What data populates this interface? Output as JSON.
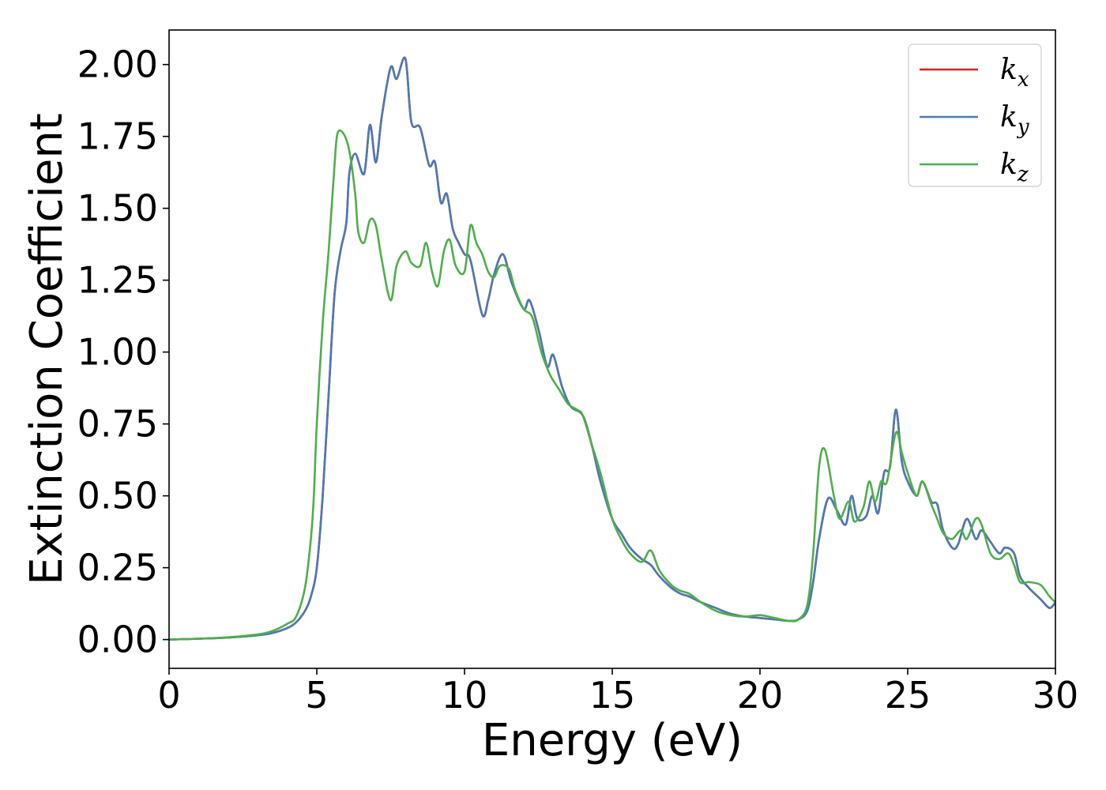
{
  "chart_data": {
    "type": "line",
    "xlabel": "Energy (eV)",
    "ylabel": "Extinction Coefficient",
    "xlim": [
      0,
      30
    ],
    "ylim": [
      -0.1,
      2.12
    ],
    "xticks": [
      0,
      5,
      10,
      15,
      20,
      25,
      30
    ],
    "xtick_labels": [
      "0",
      "5",
      "10",
      "15",
      "20",
      "25",
      "30"
    ],
    "yticks": [
      0,
      0.25,
      0.5,
      0.75,
      1.0,
      1.25,
      1.5,
      1.75,
      2.0
    ],
    "ytick_labels": [
      "0.00",
      "0.25",
      "0.50",
      "0.75",
      "1.00",
      "1.25",
      "1.50",
      "1.75",
      "2.00"
    ],
    "grid": false,
    "legend_position": "top-right",
    "legend": [
      {
        "symbol": "k",
        "subscript": "x",
        "color": "#e41a1c"
      },
      {
        "symbol": "k",
        "subscript": "y",
        "color": "#4a7ab5"
      },
      {
        "symbol": "k",
        "subscript": "z",
        "color": "#4daf4a"
      }
    ],
    "series": [
      {
        "color": "#e41a1c",
        "x": [
          0,
          1,
          2,
          3,
          3.5,
          4,
          4.3,
          4.6,
          4.8,
          5,
          5.2,
          5.4,
          5.6,
          5.8,
          6,
          6.1,
          6.3,
          6.6,
          6.8,
          7,
          7.2,
          7.5,
          7.7,
          8,
          8.2,
          8.5,
          8.8,
          9,
          9.2,
          9.4,
          9.6,
          9.8,
          10,
          10.2,
          10.6,
          10.8,
          11,
          11.3,
          11.6,
          12,
          12.2,
          12.5,
          12.8,
          13,
          13.3,
          13.6,
          14,
          14.3,
          14.6,
          15,
          15.3,
          15.6,
          16,
          16.3,
          16.6,
          17,
          17.3,
          17.6,
          18,
          18.5,
          19,
          19.5,
          20,
          20.5,
          21,
          21.3,
          21.6,
          21.8,
          22,
          22.3,
          22.6,
          22.9,
          23.1,
          23.3,
          23.6,
          23.8,
          24,
          24.2,
          24.4,
          24.6,
          24.8,
          25,
          25.3,
          25.5,
          25.8,
          26,
          26.2,
          26.5,
          26.7,
          27,
          27.3,
          27.5,
          27.8,
          28.1,
          28.3,
          28.6,
          28.8,
          29.1,
          29.5,
          29.8,
          30
        ],
        "values": [
          0,
          0.003,
          0.007,
          0.015,
          0.023,
          0.04,
          0.06,
          0.1,
          0.15,
          0.25,
          0.5,
          0.85,
          1.2,
          1.35,
          1.45,
          1.62,
          1.69,
          1.62,
          1.79,
          1.66,
          1.82,
          1.99,
          1.95,
          2.02,
          1.8,
          1.78,
          1.65,
          1.66,
          1.52,
          1.55,
          1.43,
          1.38,
          1.34,
          1.32,
          1.13,
          1.18,
          1.27,
          1.34,
          1.24,
          1.15,
          1.18,
          1.08,
          0.95,
          0.99,
          0.88,
          0.81,
          0.78,
          0.68,
          0.55,
          0.42,
          0.37,
          0.32,
          0.28,
          0.26,
          0.22,
          0.18,
          0.16,
          0.15,
          0.13,
          0.11,
          0.09,
          0.08,
          0.075,
          0.07,
          0.065,
          0.07,
          0.1,
          0.2,
          0.35,
          0.49,
          0.45,
          0.4,
          0.5,
          0.42,
          0.43,
          0.5,
          0.44,
          0.58,
          0.6,
          0.8,
          0.62,
          0.55,
          0.5,
          0.55,
          0.48,
          0.47,
          0.38,
          0.32,
          0.33,
          0.42,
          0.35,
          0.38,
          0.34,
          0.3,
          0.32,
          0.3,
          0.22,
          0.18,
          0.14,
          0.11,
          0.13
        ]
      },
      {
        "color": "#4a7ab5",
        "x": [
          0,
          1,
          2,
          3,
          3.5,
          4,
          4.3,
          4.6,
          4.8,
          5,
          5.2,
          5.4,
          5.6,
          5.8,
          6,
          6.1,
          6.3,
          6.6,
          6.8,
          7,
          7.2,
          7.5,
          7.7,
          8,
          8.2,
          8.5,
          8.8,
          9,
          9.2,
          9.4,
          9.6,
          9.8,
          10,
          10.2,
          10.6,
          10.8,
          11,
          11.3,
          11.6,
          12,
          12.2,
          12.5,
          12.8,
          13,
          13.3,
          13.6,
          14,
          14.3,
          14.6,
          15,
          15.3,
          15.6,
          16,
          16.3,
          16.6,
          17,
          17.3,
          17.6,
          18,
          18.5,
          19,
          19.5,
          20,
          20.5,
          21,
          21.3,
          21.6,
          21.8,
          22,
          22.3,
          22.6,
          22.9,
          23.1,
          23.3,
          23.6,
          23.8,
          24,
          24.2,
          24.4,
          24.6,
          24.8,
          25,
          25.3,
          25.5,
          25.8,
          26,
          26.2,
          26.5,
          26.7,
          27,
          27.3,
          27.5,
          27.8,
          28.1,
          28.3,
          28.6,
          28.8,
          29.1,
          29.5,
          29.8,
          30
        ],
        "values": [
          0,
          0.003,
          0.007,
          0.015,
          0.023,
          0.04,
          0.06,
          0.1,
          0.15,
          0.25,
          0.5,
          0.85,
          1.2,
          1.35,
          1.45,
          1.62,
          1.69,
          1.62,
          1.79,
          1.66,
          1.82,
          1.99,
          1.95,
          2.02,
          1.8,
          1.78,
          1.65,
          1.66,
          1.52,
          1.55,
          1.43,
          1.38,
          1.34,
          1.32,
          1.13,
          1.18,
          1.27,
          1.34,
          1.24,
          1.15,
          1.18,
          1.08,
          0.95,
          0.99,
          0.88,
          0.81,
          0.78,
          0.68,
          0.55,
          0.42,
          0.37,
          0.32,
          0.28,
          0.26,
          0.22,
          0.18,
          0.16,
          0.15,
          0.13,
          0.11,
          0.09,
          0.08,
          0.075,
          0.07,
          0.065,
          0.07,
          0.1,
          0.2,
          0.35,
          0.49,
          0.45,
          0.4,
          0.5,
          0.42,
          0.43,
          0.5,
          0.44,
          0.58,
          0.6,
          0.8,
          0.62,
          0.55,
          0.5,
          0.55,
          0.48,
          0.47,
          0.38,
          0.32,
          0.33,
          0.42,
          0.35,
          0.38,
          0.34,
          0.3,
          0.32,
          0.3,
          0.22,
          0.18,
          0.14,
          0.11,
          0.13
        ]
      },
      {
        "color": "#4daf4a",
        "x": [
          0,
          1,
          2,
          3,
          3.5,
          4,
          4.3,
          4.6,
          4.8,
          4.9,
          5,
          5.2,
          5.4,
          5.6,
          5.7,
          5.9,
          6.1,
          6.3,
          6.4,
          6.6,
          6.8,
          7,
          7.2,
          7.5,
          7.7,
          8,
          8.2,
          8.5,
          8.7,
          8.9,
          9.1,
          9.3,
          9.5,
          9.7,
          10,
          10.2,
          10.4,
          10.6,
          10.8,
          11,
          11.2,
          11.5,
          11.7,
          12,
          12.3,
          12.6,
          12.9,
          13.2,
          13.5,
          13.8,
          14,
          14.3,
          14.6,
          15,
          15.3,
          15.6,
          16,
          16.3,
          16.6,
          17,
          17.3,
          17.6,
          18,
          18.5,
          19,
          19.5,
          20,
          20.5,
          21,
          21.3,
          21.6,
          21.8,
          22,
          22.2,
          22.5,
          22.7,
          23,
          23.2,
          23.5,
          23.7,
          23.9,
          24.1,
          24.3,
          24.6,
          24.8,
          25,
          25.3,
          25.5,
          25.8,
          26,
          26.2,
          26.5,
          26.8,
          27,
          27.3,
          27.5,
          27.8,
          28.1,
          28.4,
          28.6,
          28.8,
          29.1,
          29.5,
          29.8,
          30
        ],
        "values": [
          0,
          0.003,
          0.008,
          0.018,
          0.03,
          0.055,
          0.08,
          0.18,
          0.35,
          0.5,
          0.75,
          1.1,
          1.35,
          1.65,
          1.76,
          1.76,
          1.7,
          1.55,
          1.42,
          1.38,
          1.46,
          1.44,
          1.32,
          1.18,
          1.3,
          1.35,
          1.31,
          1.3,
          1.38,
          1.28,
          1.23,
          1.35,
          1.39,
          1.3,
          1.28,
          1.44,
          1.38,
          1.34,
          1.28,
          1.26,
          1.3,
          1.29,
          1.22,
          1.15,
          1.12,
          1.0,
          0.92,
          0.87,
          0.82,
          0.8,
          0.78,
          0.68,
          0.58,
          0.42,
          0.35,
          0.3,
          0.27,
          0.31,
          0.24,
          0.19,
          0.17,
          0.16,
          0.13,
          0.1,
          0.085,
          0.08,
          0.085,
          0.075,
          0.065,
          0.07,
          0.12,
          0.3,
          0.6,
          0.66,
          0.5,
          0.42,
          0.48,
          0.41,
          0.46,
          0.55,
          0.48,
          0.55,
          0.55,
          0.72,
          0.65,
          0.58,
          0.5,
          0.55,
          0.47,
          0.42,
          0.37,
          0.35,
          0.38,
          0.35,
          0.42,
          0.4,
          0.3,
          0.28,
          0.3,
          0.26,
          0.2,
          0.2,
          0.19,
          0.15,
          0.13
        ]
      }
    ]
  }
}
